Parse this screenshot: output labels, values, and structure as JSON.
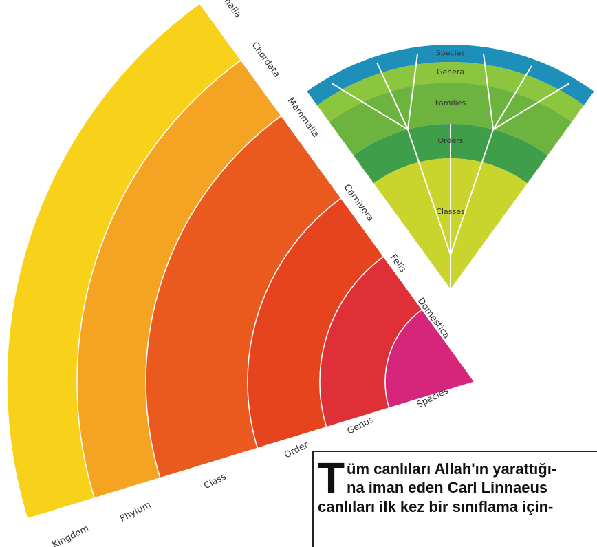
{
  "fan": {
    "ranks": [
      "Kingdom",
      "Phylum",
      "Class",
      "Order",
      "Genus",
      "Species"
    ],
    "taxa": [
      "Animalia",
      "Chordata",
      "Mammalia",
      "Carnivora",
      "Felis",
      "Domestica"
    ]
  },
  "tree": {
    "levels": [
      "Species",
      "Genera",
      "Families",
      "Orders",
      "Classes"
    ]
  },
  "textbox": {
    "dropcap": "T",
    "lines": [
      "üm canlıları Allah'ın yarattığı-",
      "na iman eden Carl Linnaeus",
      "canlıları ilk kez bir sınıflama için-"
    ]
  }
}
